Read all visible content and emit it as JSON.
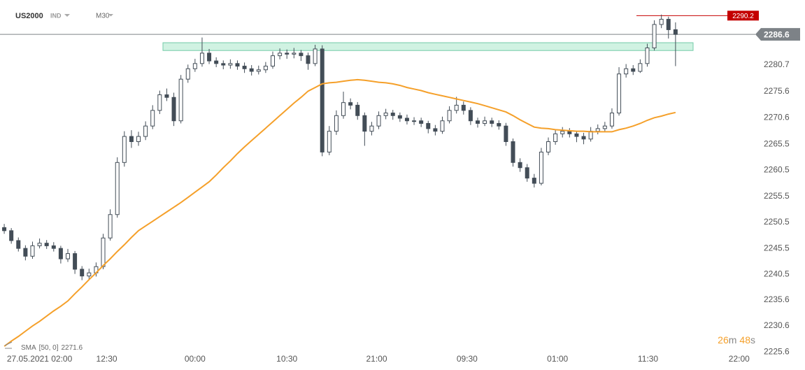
{
  "toolbar": {
    "symbol": "US2000",
    "market": "IND",
    "interval": "M30"
  },
  "chart_data": {
    "type": "candlestick",
    "up_color": "#ffffff",
    "down_color": "#434d57",
    "wick_color": "#434d57",
    "xlim": [
      -0.6,
      105.8
    ],
    "ylim": [
      2224.7,
      2293.2
    ],
    "grid": false,
    "xticks": [
      {
        "value": 5,
        "label": "27.05.2021 02:00"
      },
      {
        "value": 14.5,
        "label": "12:30"
      },
      {
        "value": 27,
        "label": "00:00"
      },
      {
        "value": 40,
        "label": "10:30"
      },
      {
        "value": 52.7,
        "label": "21:00"
      },
      {
        "value": 65.5,
        "label": "09:30"
      },
      {
        "value": 78.3,
        "label": "01:00"
      },
      {
        "value": 91.1,
        "label": "11:30"
      },
      {
        "value": 104,
        "label": "22:00"
      }
    ],
    "yticks": [
      2225.6,
      2230.6,
      2235.6,
      2240.5,
      2245.5,
      2250.5,
      2255.5,
      2260.5,
      2265.5,
      2270.6,
      2275.6,
      2280.7
    ],
    "candles": [
      [
        2249.5,
        2250.2,
        2248.3,
        2248.9
      ],
      [
        2248.9,
        2249.4,
        2246.4,
        2247
      ],
      [
        2247,
        2247.6,
        2244.9,
        2245.5
      ],
      [
        2245.5,
        2246.1,
        2243.2,
        2244
      ],
      [
        2244,
        2246.8,
        2243.5,
        2246
      ],
      [
        2246,
        2247.4,
        2245.5,
        2246.5
      ],
      [
        2246.5,
        2247.1,
        2245.4,
        2246
      ],
      [
        2246,
        2246.7,
        2244.9,
        2245.5
      ],
      [
        2245.5,
        2246,
        2242.6,
        2243.5
      ],
      [
        2243.5,
        2245.4,
        2242.9,
        2244.5
      ],
      [
        2244.5,
        2245,
        2240.6,
        2241.5
      ],
      [
        2241.5,
        2242.1,
        2239.4,
        2240.2
      ],
      [
        2240.2,
        2241.6,
        2239.6,
        2240.8
      ],
      [
        2240.8,
        2242.8,
        2240.1,
        2242
      ],
      [
        2242,
        2248.3,
        2241.5,
        2247.5
      ],
      [
        2247.5,
        2253,
        2247,
        2252
      ],
      [
        2252,
        2263,
        2251.4,
        2262
      ],
      [
        2262,
        2268,
        2261.2,
        2267
      ],
      [
        2267,
        2268.2,
        2264.8,
        2266
      ],
      [
        2266,
        2267.9,
        2265.2,
        2267
      ],
      [
        2267,
        2269.9,
        2266.3,
        2269
      ],
      [
        2269,
        2273,
        2268.4,
        2272
      ],
      [
        2272,
        2275.8,
        2271.3,
        2275
      ],
      [
        2275,
        2276.2,
        2273.8,
        2274.5
      ],
      [
        2274.5,
        2275.4,
        2269,
        2270
      ],
      [
        2270,
        2278.8,
        2269.5,
        2278
      ],
      [
        2278,
        2280.8,
        2277.3,
        2280
      ],
      [
        2280,
        2281.9,
        2279.4,
        2281
      ],
      [
        2281,
        2286,
        2280.4,
        2283
      ],
      [
        2283,
        2283.8,
        2280.9,
        2281.5
      ],
      [
        2281.5,
        2282.2,
        2280.3,
        2281
      ],
      [
        2281,
        2281.6,
        2279.9,
        2280.7
      ],
      [
        2280.7,
        2281.8,
        2280,
        2281
      ],
      [
        2281,
        2281.6,
        2279.8,
        2280.5
      ],
      [
        2280.5,
        2281.2,
        2279.2,
        2280
      ],
      [
        2280,
        2280.7,
        2278.7,
        2279.5
      ],
      [
        2279.5,
        2280.6,
        2278.9,
        2279.8
      ],
      [
        2279.8,
        2281.3,
        2279.2,
        2280.5
      ],
      [
        2280.5,
        2283.3,
        2280,
        2282.5
      ],
      [
        2282.5,
        2283.9,
        2281.8,
        2283
      ],
      [
        2283,
        2283.7,
        2281.9,
        2282.8
      ],
      [
        2282.8,
        2284,
        2282,
        2283
      ],
      [
        2283,
        2283.6,
        2281.5,
        2282.5
      ],
      [
        2282.5,
        2283.1,
        2279.8,
        2281
      ],
      [
        2281,
        2284.6,
        2280.5,
        2283.8
      ],
      [
        2283.8,
        2284.5,
        2263.2,
        2264
      ],
      [
        2264,
        2269,
        2263.4,
        2268
      ],
      [
        2268,
        2272,
        2267.3,
        2271
      ],
      [
        2271,
        2275.6,
        2270.4,
        2273.5
      ],
      [
        2273.5,
        2274.3,
        2272.2,
        2273
      ],
      [
        2273,
        2273.6,
        2270.2,
        2271
      ],
      [
        2271,
        2271.6,
        2265.2,
        2268
      ],
      [
        2268,
        2269.8,
        2267.2,
        2269
      ],
      [
        2269,
        2271.8,
        2268.4,
        2271
      ],
      [
        2271,
        2272.3,
        2270.3,
        2271.5
      ],
      [
        2271.5,
        2272.1,
        2270.2,
        2271
      ],
      [
        2271,
        2271.6,
        2269.8,
        2270.5
      ],
      [
        2270.5,
        2271.2,
        2269.3,
        2270
      ],
      [
        2270,
        2270.7,
        2269.2,
        2270
      ],
      [
        2270,
        2270.6,
        2268.8,
        2269.5
      ],
      [
        2269.5,
        2270,
        2267.6,
        2268.5
      ],
      [
        2268.5,
        2269.2,
        2267.2,
        2268
      ],
      [
        2268,
        2270.8,
        2267.5,
        2270
      ],
      [
        2270,
        2272.8,
        2269.5,
        2272
      ],
      [
        2272,
        2274.6,
        2271.4,
        2273
      ],
      [
        2273,
        2273.7,
        2271.2,
        2272
      ],
      [
        2272,
        2272.6,
        2269.2,
        2270
      ],
      [
        2270,
        2270.6,
        2268.7,
        2269.5
      ],
      [
        2269.5,
        2270.8,
        2269,
        2270
      ],
      [
        2270,
        2270.6,
        2268.8,
        2269.5
      ],
      [
        2269.5,
        2270.1,
        2268.3,
        2269
      ],
      [
        2269,
        2269.6,
        2265.2,
        2266
      ],
      [
        2266,
        2266.6,
        2261.2,
        2262
      ],
      [
        2262,
        2262.8,
        2260.2,
        2261
      ],
      [
        2261,
        2261.7,
        2258.3,
        2259
      ],
      [
        2259,
        2259.8,
        2257.2,
        2258
      ],
      [
        2258,
        2264.8,
        2257.6,
        2264
      ],
      [
        2264,
        2266.8,
        2263.4,
        2266
      ],
      [
        2266,
        2268.3,
        2265.4,
        2267.5
      ],
      [
        2267.5,
        2268.8,
        2266.8,
        2268
      ],
      [
        2268,
        2268.6,
        2266.8,
        2267.5
      ],
      [
        2267.5,
        2268.1,
        2265.9,
        2267
      ],
      [
        2267,
        2267.7,
        2265.5,
        2266.5
      ],
      [
        2266.5,
        2268.8,
        2266,
        2268
      ],
      [
        2268,
        2269.3,
        2267.4,
        2268.5
      ],
      [
        2268.5,
        2269.8,
        2267.9,
        2269
      ],
      [
        2269,
        2272.4,
        2268.5,
        2271.5
      ],
      [
        2271.5,
        2280.3,
        2271,
        2279
      ],
      [
        2279,
        2280.9,
        2278.3,
        2280
      ],
      [
        2280,
        2280.7,
        2278.8,
        2279.5
      ],
      [
        2279.5,
        2281.8,
        2279.2,
        2281
      ],
      [
        2281,
        2284.8,
        2280.4,
        2284
      ],
      [
        2284,
        2289.3,
        2283.5,
        2288.5
      ],
      [
        2288.5,
        2290.4,
        2287.8,
        2289.5
      ],
      [
        2289.5,
        2290,
        2285.8,
        2287.5
      ],
      [
        2287.5,
        2288.9,
        2280.5,
        2286.6
      ]
    ],
    "series": [
      {
        "name": "SMA",
        "params": "[50, 0]",
        "color": "#f5a02a",
        "values": [
          2226.7,
          2227.7,
          2228.6,
          2229.6,
          2230.6,
          2231.5,
          2232.5,
          2233.5,
          2234.4,
          2235.4,
          2236.8,
          2238.1,
          2239.5,
          2240.8,
          2242.2,
          2243.5,
          2244.9,
          2246.2,
          2247.6,
          2248.9,
          2249.8,
          2250.7,
          2251.6,
          2252.5,
          2253.4,
          2254.3,
          2255.3,
          2256.3,
          2257.3,
          2258.3,
          2259.6,
          2261,
          2262.3,
          2263.7,
          2265,
          2266.2,
          2267.4,
          2268.6,
          2269.8,
          2271,
          2272.2,
          2273.4,
          2274.5,
          2275.7,
          2276.4,
          2277.1,
          2277.3,
          2277.4,
          2277.6,
          2277.8,
          2277.9,
          2277.8,
          2277.6,
          2277.4,
          2277.3,
          2277.1,
          2276.8,
          2276.4,
          2276.1,
          2275.8,
          2275.4,
          2275.1,
          2274.8,
          2274.5,
          2274.2,
          2273.9,
          2273.6,
          2273.3,
          2272.9,
          2272.5,
          2272.1,
          2271.7,
          2271,
          2270.2,
          2269.5,
          2268.8,
          2268.6,
          2268.5,
          2268.3,
          2268.2,
          2268.1,
          2268,
          2268,
          2267.9,
          2267.9,
          2267.9,
          2267.9,
          2268.3,
          2268.6,
          2269,
          2269.5,
          2270.1,
          2270.6,
          2270.9,
          2271.3,
          2271.6
        ]
      }
    ],
    "zone": {
      "range": [
        2283.5,
        2285
      ],
      "color": "#c8f0de",
      "border": "#5cc49a"
    },
    "level": {
      "value": 2290.2,
      "color": "#c40000"
    },
    "price_line_color": "#7d8287",
    "countdown": [
      "26",
      "m",
      "48",
      "s"
    ]
  }
}
